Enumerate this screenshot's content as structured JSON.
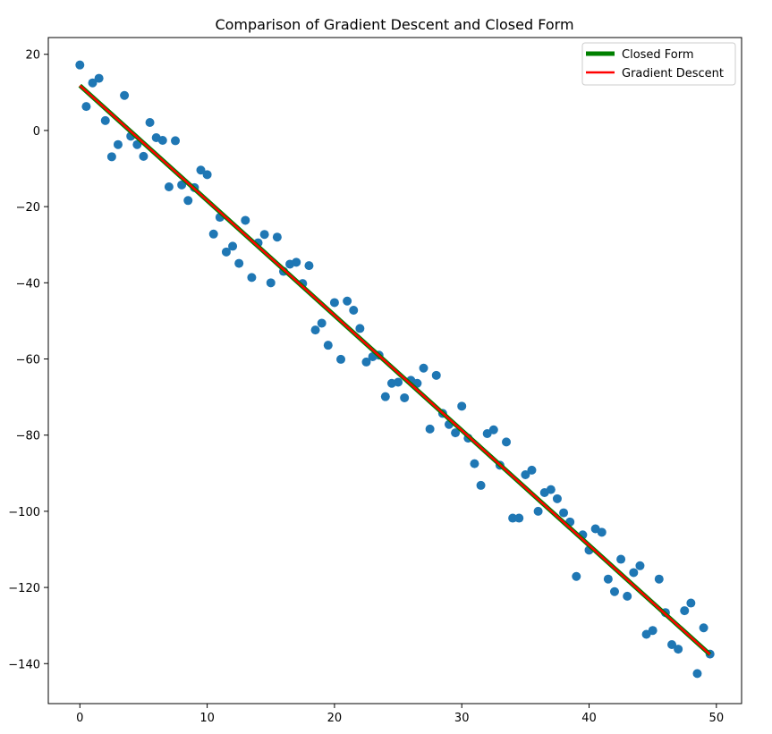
{
  "chart_data": {
    "type": "scatter",
    "title": "Comparison of Gradient Descent and Closed Form",
    "xlabel": "",
    "ylabel": "",
    "xlim": [
      -2.48,
      51.98
    ],
    "ylim": [
      -150.5,
      24.4
    ],
    "xticks": [
      0,
      10,
      20,
      30,
      40,
      50
    ],
    "yticks": [
      20,
      0,
      -20,
      -40,
      -60,
      -80,
      -100,
      -120,
      -140
    ],
    "grid": false,
    "legend_position": "top-right",
    "colors": {
      "points": "#1f77b4",
      "closed_form": "#008000",
      "gradient_descent": "#ff0000"
    },
    "legend": [
      {
        "label": "Closed Form",
        "color": "#008000"
      },
      {
        "label": "Gradient Descent",
        "color": "#ff0000"
      }
    ],
    "lines": [
      {
        "name": "Closed Form",
        "x": [
          0,
          49.5
        ],
        "y": [
          11.8,
          -137.6
        ]
      },
      {
        "name": "Gradient Descent",
        "x": [
          0,
          49.5
        ],
        "y": [
          11.8,
          -137.6
        ]
      }
    ],
    "points": {
      "x": [
        0,
        0.5,
        1,
        1.5,
        2,
        2.5,
        3,
        3.5,
        4,
        4.5,
        5,
        5.5,
        6,
        6.5,
        7,
        7.5,
        8,
        8.5,
        9,
        9.5,
        10,
        10.5,
        11,
        11.5,
        12,
        12.5,
        13,
        13.5,
        14,
        14.5,
        15,
        15.5,
        16,
        16.5,
        17,
        17.5,
        18,
        18.5,
        19,
        19.5,
        20,
        20.5,
        21,
        21.5,
        22,
        22.5,
        23,
        23.5,
        24,
        24.5,
        25,
        25.5,
        26,
        26.5,
        27,
        27.5,
        28,
        28.5,
        29,
        29.5,
        30,
        30.5,
        31,
        31.5,
        32,
        32.5,
        33,
        33.5,
        34,
        34.5,
        35,
        35.5,
        36,
        36.5,
        37,
        37.5,
        38,
        38.5,
        39,
        39.5,
        40,
        40.5,
        41,
        41.5,
        42,
        42.5,
        43,
        43.5,
        44,
        44.5,
        45,
        45.5,
        46,
        46.5,
        47,
        47.5,
        48,
        48.5,
        49,
        49.5
      ],
      "y": [
        17.2,
        6.3,
        12.5,
        13.7,
        2.6,
        -6.9,
        -3.7,
        9.2,
        -1.5,
        -3.7,
        -6.8,
        2.1,
        -1.9,
        -2.6,
        -14.8,
        -2.7,
        -14.3,
        -18.4,
        -15.0,
        -10.4,
        -11.6,
        -27.2,
        -22.8,
        -31.9,
        -30.4,
        -34.9,
        -23.6,
        -38.6,
        -29.5,
        -27.3,
        -40.0,
        -28.0,
        -37.0,
        -35.1,
        -34.6,
        -40.2,
        -35.5,
        -52.4,
        -50.6,
        -56.4,
        -45.2,
        -60.1,
        -44.8,
        -47.2,
        -52.0,
        -60.8,
        -59.4,
        -59.0,
        -69.9,
        -66.4,
        -66.1,
        -70.2,
        -65.6,
        -66.4,
        -62.4,
        -78.4,
        -64.3,
        -74.3,
        -77.2,
        -79.4,
        -72.4,
        -80.8,
        -87.5,
        -93.2,
        -79.6,
        -78.6,
        -87.9,
        -81.8,
        -101.8,
        -101.8,
        -90.4,
        -89.2,
        -100.0,
        -95.1,
        -94.3,
        -96.7,
        -100.4,
        -102.8,
        -117.1,
        -106.2,
        -110.2,
        -104.6,
        -105.5,
        -117.8,
        -121.1,
        -112.6,
        -122.3,
        -116.1,
        -114.3,
        -132.3,
        -131.3,
        -117.8,
        -126.6,
        -135.0,
        -136.2,
        -126.1,
        -124.1,
        -142.6,
        -130.6,
        -137.5
      ]
    }
  }
}
